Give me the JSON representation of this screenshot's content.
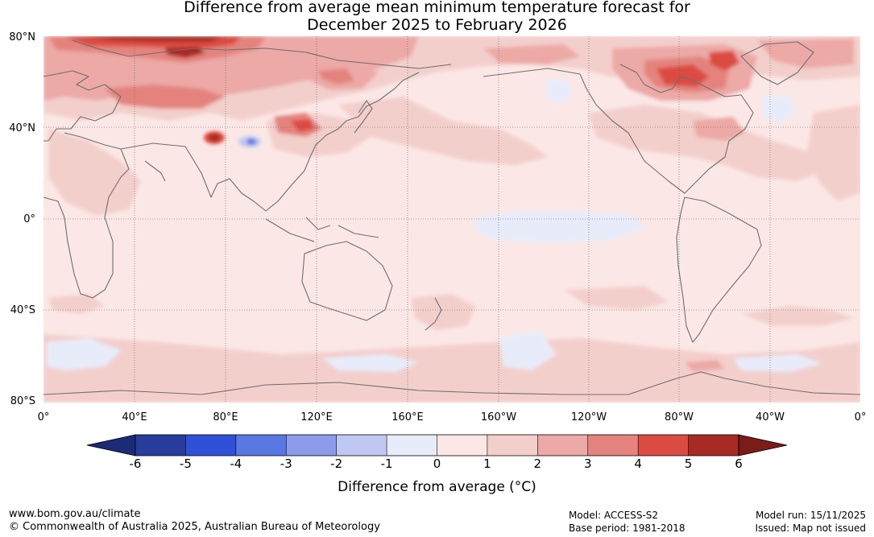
{
  "title": {
    "line1": "Difference from average mean minimum temperature forecast for",
    "line2": "December 2025 to February 2026"
  },
  "map": {
    "projection": "plate-carree",
    "central_longitude": 180,
    "lat_labels": [
      {
        "lat": 80,
        "text": "80°N"
      },
      {
        "lat": 40,
        "text": "40°N"
      },
      {
        "lat": 0,
        "text": "0°"
      },
      {
        "lat": -40,
        "text": "40°S"
      },
      {
        "lat": -80,
        "text": "80°S"
      }
    ],
    "lon_labels": [
      {
        "lon": 0,
        "text": "0°"
      },
      {
        "lon": 40,
        "text": "40°E"
      },
      {
        "lon": 80,
        "text": "80°E"
      },
      {
        "lon": 120,
        "text": "120°E"
      },
      {
        "lon": 160,
        "text": "160°E"
      },
      {
        "lon": 200,
        "text": "160°W"
      },
      {
        "lon": 240,
        "text": "120°W"
      },
      {
        "lon": 280,
        "text": "80°W"
      },
      {
        "lon": 320,
        "text": "40°W"
      },
      {
        "lon": 360,
        "text": "0°"
      }
    ],
    "background_anomaly": "0 to 1",
    "regions": [
      {
        "name": "arctic-russia-warm",
        "lon": 70,
        "lat": 77,
        "anomaly": "5 to 6+"
      },
      {
        "name": "northern-europe-warm",
        "lon": 45,
        "lat": 70,
        "anomaly": "3 to 4"
      },
      {
        "name": "siberia-warm",
        "lon": 110,
        "lat": 65,
        "anomaly": "1 to 3"
      },
      {
        "name": "canada-hudson-warm",
        "lon": 285,
        "lat": 62,
        "anomaly": "4 to 5"
      },
      {
        "name": "greenland-warm",
        "lon": 305,
        "lat": 72,
        "anomaly": "3 to 4"
      },
      {
        "name": "tibet-hotspot",
        "lon": 77,
        "lat": 35,
        "anomaly": "5 to 6"
      },
      {
        "name": "tibet-cool-spot",
        "lon": 92,
        "lat": 34,
        "anomaly": "-3 to -2"
      },
      {
        "name": "mongolia-warm",
        "lon": 112,
        "lat": 40,
        "anomaly": "2 to 4"
      },
      {
        "name": "east-pacific-cool",
        "lon": 230,
        "lat": -2,
        "anomaly": "-1 to 0"
      },
      {
        "name": "north-pacific-cool",
        "lon": 222,
        "lat": 55,
        "anomaly": "-1 to 0"
      },
      {
        "name": "north-atlantic-cool",
        "lon": 330,
        "lat": 48,
        "anomaly": "-1 to 0"
      },
      {
        "name": "southern-ocean-cool",
        "lon": 215,
        "lat": -55,
        "anomaly": "-1 to 0"
      }
    ]
  },
  "colorbar": {
    "levels": [
      -6,
      -5,
      -4,
      -3,
      -2,
      -1,
      0,
      1,
      2,
      3,
      4,
      5,
      6
    ],
    "tick_labels": [
      "-6",
      "-5",
      "-4",
      "-3",
      "-2",
      "-1",
      "0",
      "1",
      "2",
      "3",
      "4",
      "5",
      "6"
    ],
    "colors": [
      "#283c9e",
      "#3050d8",
      "#5a78e2",
      "#8c9ceb",
      "#c0c8f2",
      "#e8ecfa",
      "#fbe8e6",
      "#f3cfcc",
      "#eca9a6",
      "#e4837d",
      "#dc4b42",
      "#a82a24"
    ],
    "under_color": "#1c2a78",
    "over_color": "#7a1c18",
    "label": "Difference from average (°C)"
  },
  "colors": {
    "land_outline": "#6e6e6e",
    "grid": "#555555",
    "background_fill": "#fbe8e6"
  },
  "footer": {
    "website": "www.bom.gov.au/climate",
    "copyright": "© Commonwealth of Australia 2025, Australian Bureau of Meteorology",
    "model": "Model: ACCESS-S2",
    "base_period": "Base period: 1981-2018",
    "model_run": "Model run: 15/11/2025",
    "issued": "Issued: Map not issued"
  }
}
